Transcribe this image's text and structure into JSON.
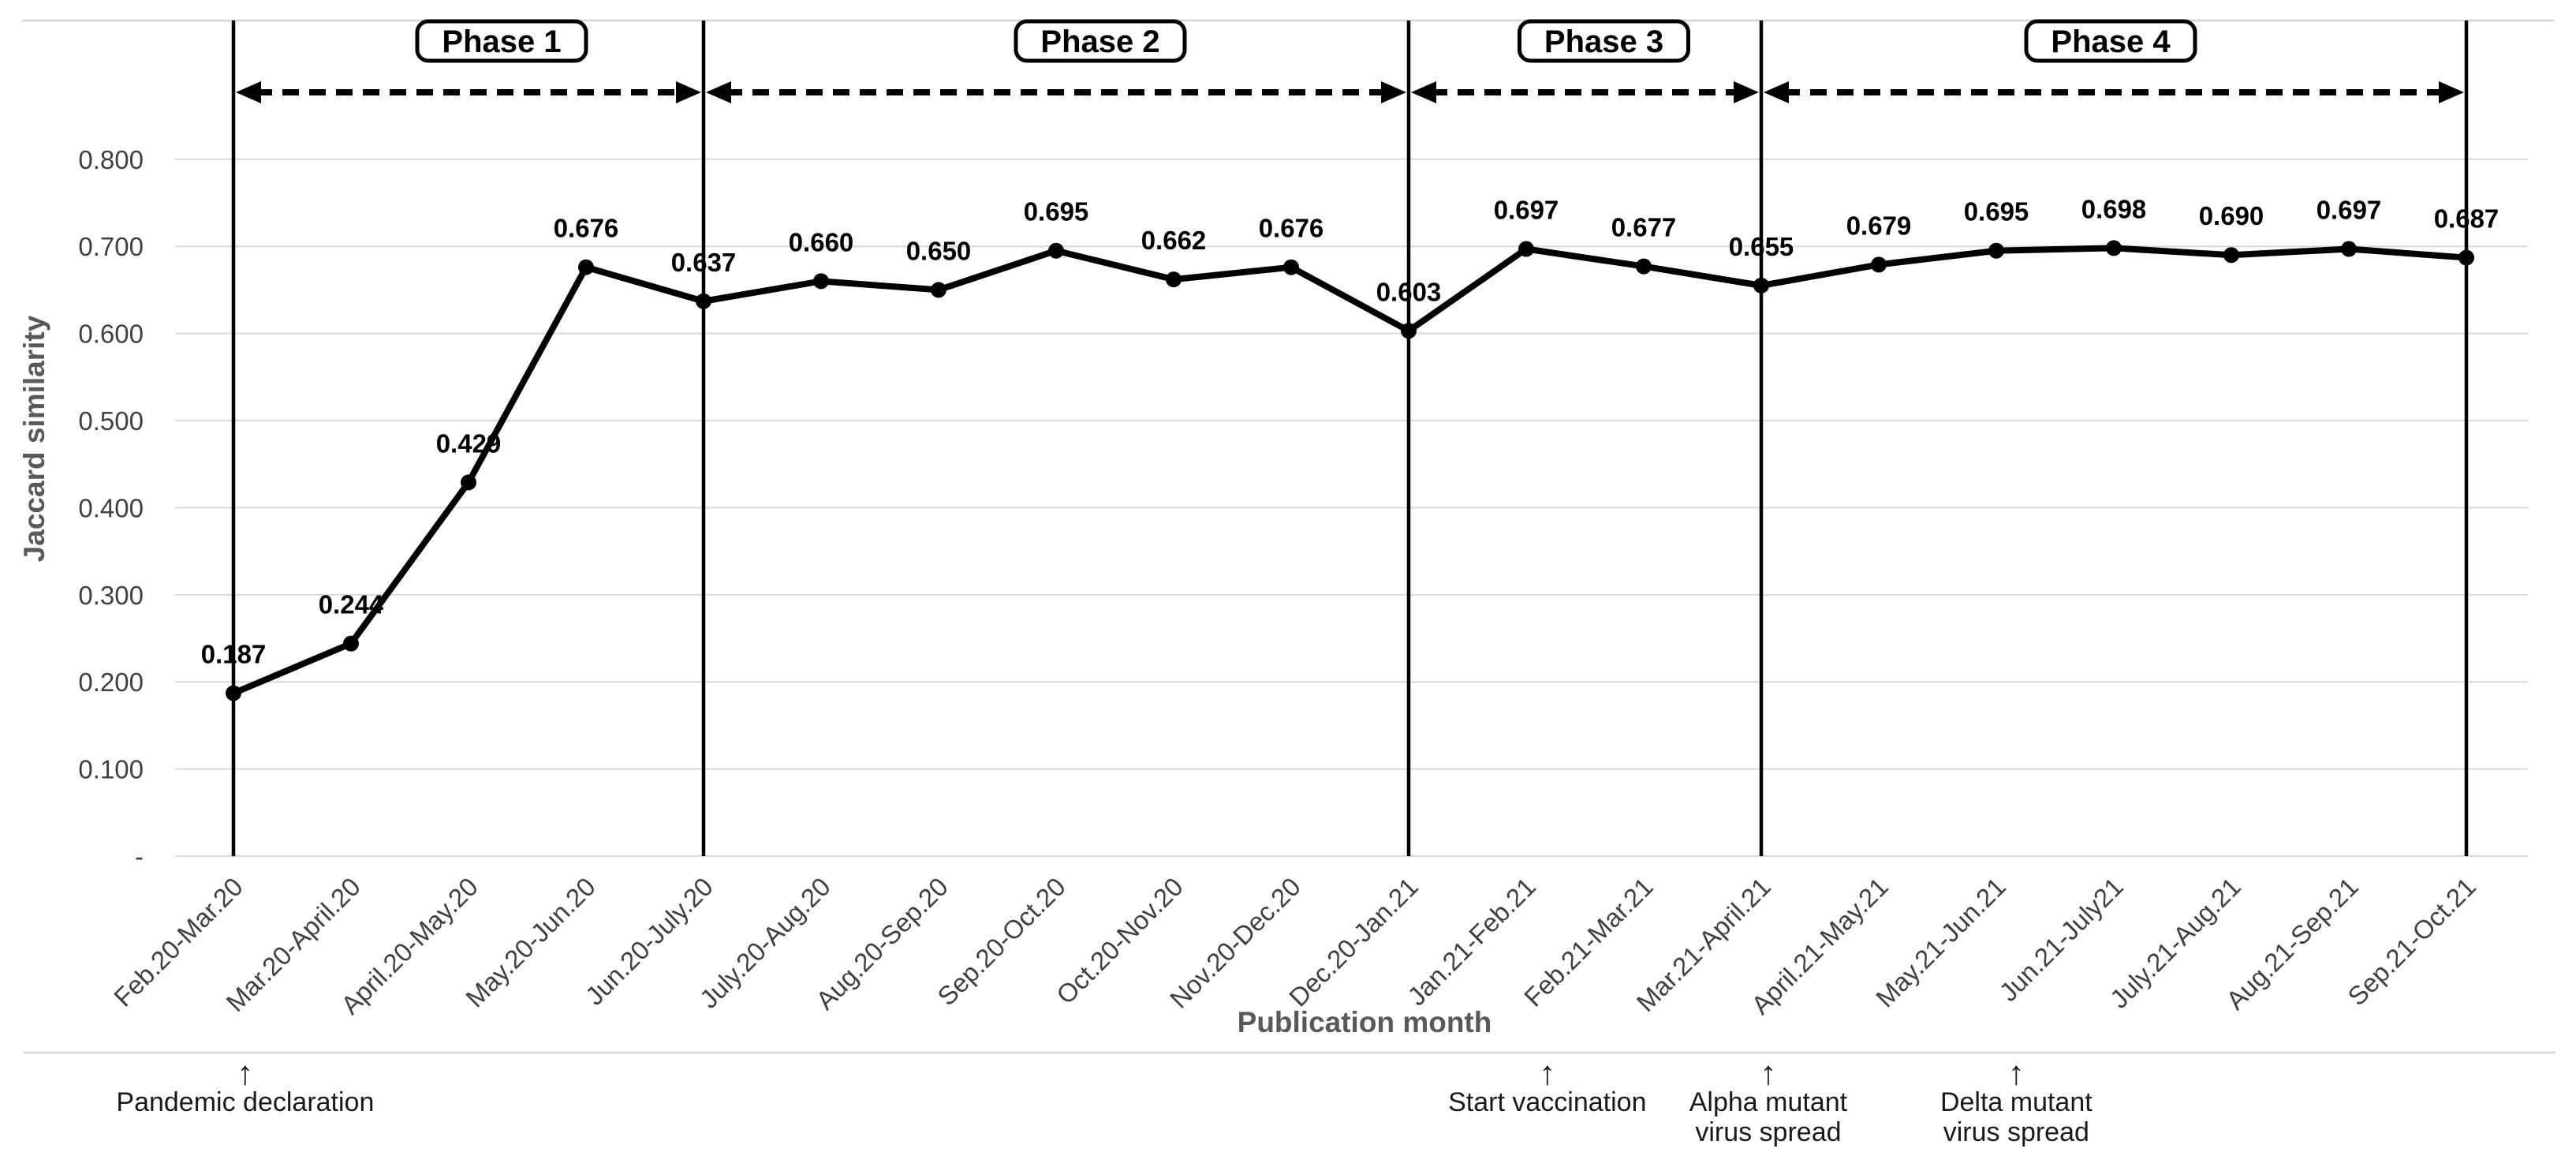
{
  "chart_data": {
    "type": "line",
    "title": "",
    "xlabel": "Publication month",
    "ylabel": "Jaccard similarity",
    "categories": [
      "Feb.20-Mar.20",
      "Mar.20-April.20",
      "April.20-May.20",
      "May.20-Jun.20",
      "Jun.20-July.20",
      "July.20-Aug.20",
      "Aug.20-Sep.20",
      "Sep.20-Oct.20",
      "Oct.20-Nov.20",
      "Nov.20-Dec.20",
      "Dec.20-Jan.21",
      "Jan.21-Feb.21",
      "Feb.21-Mar.21",
      "Mar.21-April.21",
      "April.21-May.21",
      "May.21-Jun.21",
      "Jun.21-July21",
      "July.21-Aug.21",
      "Aug.21-Sep.21",
      "Sep.21-Oct.21"
    ],
    "values": [
      0.187,
      0.244,
      0.429,
      0.676,
      0.637,
      0.66,
      0.65,
      0.695,
      0.662,
      0.676,
      0.603,
      0.697,
      0.677,
      0.655,
      0.679,
      0.695,
      0.698,
      0.69,
      0.697,
      0.687
    ],
    "value_labels": [
      "0.187",
      "0.244",
      "0.429",
      "0.676",
      "0.637",
      "0.660",
      "0.650",
      "0.695",
      "0.662",
      "0.676",
      "0.603",
      "0.697",
      "0.677",
      "0.655",
      "0.679",
      "0.695",
      "0.698",
      "0.690",
      "0.697",
      "0.687"
    ],
    "y_ticks": [
      {
        "value": 0.8,
        "label": "0.800"
      },
      {
        "value": 0.7,
        "label": "0.700"
      },
      {
        "value": 0.6,
        "label": "0.600"
      },
      {
        "value": 0.5,
        "label": "0.500"
      },
      {
        "value": 0.4,
        "label": "0.400"
      },
      {
        "value": 0.3,
        "label": "0.300"
      },
      {
        "value": 0.2,
        "label": "0.200"
      },
      {
        "value": 0.1,
        "label": "0.100"
      },
      {
        "value": 0.0,
        "label": "-"
      }
    ],
    "ylim": [
      0,
      0.96
    ],
    "grid": true,
    "legend": "none",
    "phases": [
      {
        "label": "Phase 1",
        "from_index": 0,
        "to_index": 4
      },
      {
        "label": "Phase 2",
        "from_index": 4,
        "to_index": 10
      },
      {
        "label": "Phase 3",
        "from_index": 10,
        "to_index": 13
      },
      {
        "label": "Phase 4",
        "from_index": 13,
        "to_index": 19
      }
    ],
    "boundary_indices": [
      0,
      4,
      10,
      13,
      19
    ],
    "annotations": [
      {
        "arrow": "↑",
        "lines": [
          "Pandemic declaration"
        ],
        "x_index": 0.1
      },
      {
        "arrow": "↑",
        "lines": [
          "Start vaccination"
        ],
        "x_index": 11.18
      },
      {
        "arrow": "↑",
        "lines": [
          "Alpha mutant",
          "virus spread"
        ],
        "x_index": 13.06
      },
      {
        "arrow": "↑",
        "lines": [
          "Delta mutant",
          "virus spread"
        ],
        "x_index": 15.17
      }
    ]
  },
  "colors": {
    "series_line": "#000000",
    "marker": "#000000",
    "gridline": "#d9d9d9",
    "tick_text": "#404040",
    "x_label_text": "#404040",
    "axis_title_text": "#595959",
    "value_label_text": "#000000",
    "annotation_text": "#1a1a1a",
    "phase_box_border": "#000000",
    "phase_box_fill": "#ffffff",
    "boundary_line": "#000000",
    "dashed_arrow": "#000000",
    "background": "#ffffff"
  }
}
